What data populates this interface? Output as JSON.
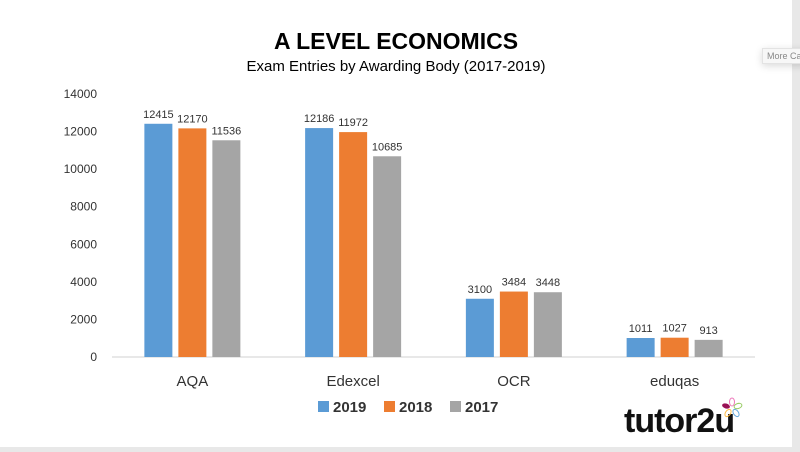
{
  "tooltip": "More Ca",
  "logo": "tutor2u",
  "chart_data": {
    "type": "bar",
    "title": "A LEVEL ECONOMICS",
    "subtitle": "Exam Entries by Awarding Body (2017-2019)",
    "categories": [
      "AQA",
      "Edexcel",
      "OCR",
      "eduqas"
    ],
    "series": [
      {
        "name": "2019",
        "color": "#5b9bd5",
        "values": [
          12415,
          12186,
          3100,
          1011
        ]
      },
      {
        "name": "2018",
        "color": "#ed7d31",
        "values": [
          12170,
          11972,
          3484,
          1027
        ]
      },
      {
        "name": "2017",
        "color": "#a5a5a5",
        "values": [
          11536,
          10685,
          3448,
          913
        ]
      }
    ],
    "ylim": [
      0,
      14000
    ],
    "yticks": [
      0,
      2000,
      4000,
      6000,
      8000,
      10000,
      12000,
      14000
    ],
    "grid": false,
    "legend": "bottom"
  }
}
